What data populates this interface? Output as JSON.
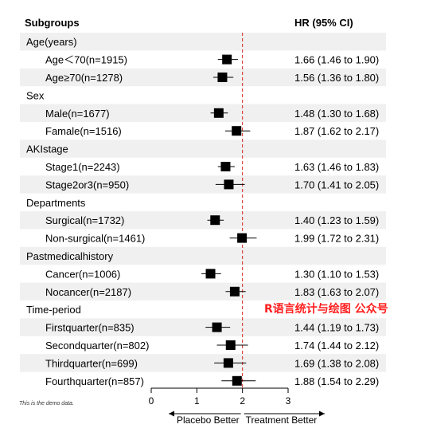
{
  "header": {
    "subgroups_label": "Subgroups",
    "hr_label": "HR (95% CI)"
  },
  "note": "This is the demo data.",
  "watermark": "R语言统计与绘图 公众号",
  "axis": {
    "ticks": [
      0,
      1,
      2,
      3
    ],
    "xlim": [
      0,
      3
    ],
    "reference_line": 2,
    "left_arrow_label": "Placebo Better",
    "right_arrow_label": "Treatment Better"
  },
  "colors": {
    "shade": "#eff0ef",
    "reference_line": "#d9221b",
    "marker": "#000000",
    "watermark": "#ff1f1f"
  },
  "chart_data": {
    "type": "forest",
    "rows": [
      {
        "label": "Age(years)",
        "group": true
      },
      {
        "label": "Age＜70(n=1915)",
        "hr": 1.66,
        "lo": 1.46,
        "hi": 1.9,
        "text": "1.66 (1.46 to 1.90)"
      },
      {
        "label": "Age≥70(n=1278)",
        "hr": 1.56,
        "lo": 1.36,
        "hi": 1.8,
        "text": "1.56 (1.36 to 1.80)"
      },
      {
        "label": "Sex",
        "group": true
      },
      {
        "label": "Male(n=1677)",
        "hr": 1.48,
        "lo": 1.3,
        "hi": 1.68,
        "text": "1.48 (1.30 to 1.68)"
      },
      {
        "label": "Famale(n=1516)",
        "hr": 1.87,
        "lo": 1.62,
        "hi": 2.17,
        "text": "1.87 (1.62 to 2.17)"
      },
      {
        "label": "AKIstage",
        "group": true
      },
      {
        "label": "Stage1(n=2243)",
        "hr": 1.63,
        "lo": 1.46,
        "hi": 1.83,
        "text": "1.63 (1.46 to 1.83)"
      },
      {
        "label": "Stage2or3(n=950)",
        "hr": 1.7,
        "lo": 1.41,
        "hi": 2.05,
        "text": "1.70 (1.41 to 2.05)"
      },
      {
        "label": "Departments",
        "group": true
      },
      {
        "label": "Surgical(n=1732)",
        "hr": 1.4,
        "lo": 1.23,
        "hi": 1.59,
        "text": "1.40 (1.23 to 1.59)"
      },
      {
        "label": "Non-surgical(n=1461)",
        "hr": 1.99,
        "lo": 1.72,
        "hi": 2.31,
        "text": "1.99 (1.72 to 2.31)"
      },
      {
        "label": "Pastmedicalhistory",
        "group": true
      },
      {
        "label": "Cancer(n=1006)",
        "hr": 1.3,
        "lo": 1.1,
        "hi": 1.53,
        "text": "1.30 (1.10 to 1.53)"
      },
      {
        "label": "Nocancer(n=2187)",
        "hr": 1.83,
        "lo": 1.63,
        "hi": 2.07,
        "text": "1.83 (1.63 to 2.07)"
      },
      {
        "label": "Time-period",
        "group": true
      },
      {
        "label": "Firstquarter(n=835)",
        "hr": 1.44,
        "lo": 1.19,
        "hi": 1.73,
        "text": "1.44 (1.19 to 1.73)"
      },
      {
        "label": "Secondquarter(n=802)",
        "hr": 1.74,
        "lo": 1.44,
        "hi": 2.12,
        "text": "1.74 (1.44 to 2.12)"
      },
      {
        "label": "Thirdquarter(n=699)",
        "hr": 1.69,
        "lo": 1.38,
        "hi": 2.08,
        "text": "1.69 (1.38 to 2.08)"
      },
      {
        "label": "Fourthquarter(n=857)",
        "hr": 1.88,
        "lo": 1.54,
        "hi": 2.29,
        "text": "1.88 (1.54 to 2.29)"
      }
    ]
  }
}
